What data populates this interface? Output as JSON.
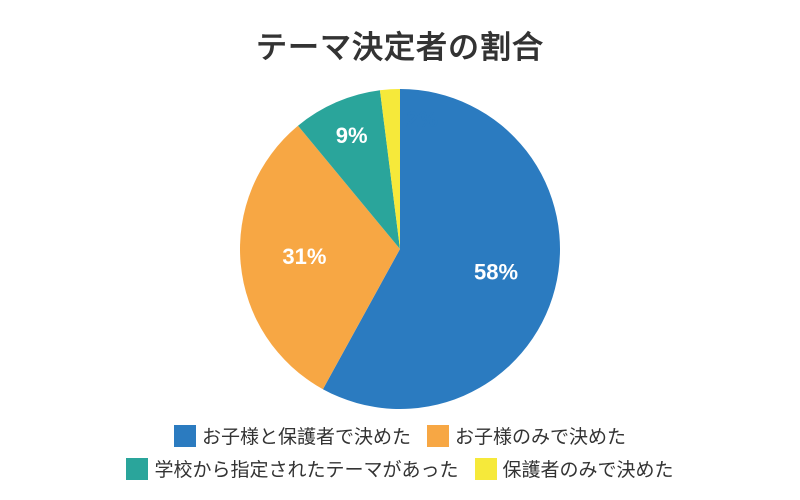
{
  "chart_data": {
    "type": "pie",
    "title": "テーマ決定者の割合",
    "categories": [
      "お子様と保護者で決めた",
      "お子様のみで決めた",
      "学校から指定されたテーマがあった",
      "保護者のみで決めた"
    ],
    "values": [
      58,
      31,
      9,
      2
    ],
    "labels": [
      "58%",
      "31%",
      "9%",
      "2%"
    ],
    "colors": [
      "#2b7bc0",
      "#f7a744",
      "#2aa59b",
      "#f6e93a"
    ],
    "legend_position": "bottom"
  }
}
